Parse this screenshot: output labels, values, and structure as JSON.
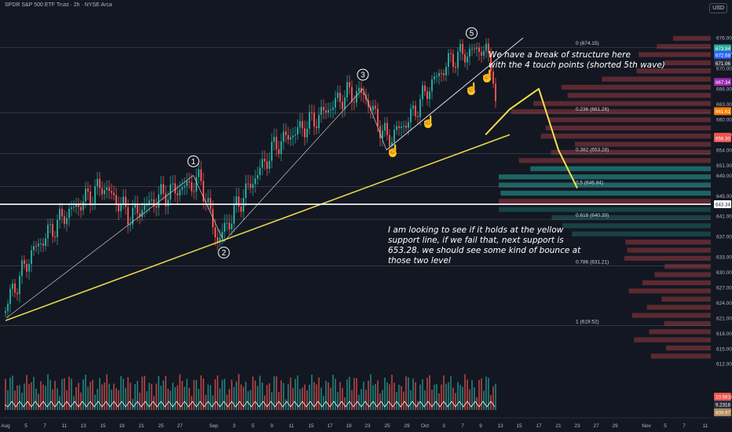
{
  "header": {
    "title": "SPDR S&P 500 ETF Trust · 2h · NYSE Arca",
    "currency": "USD"
  },
  "annotations": {
    "top": "We have a break of structure here\nwith the 4 touch points (shorted 5th wave)",
    "bottom": "I am looking to see if it holds at the yellow\nsupport line, if we fail that, next support is\n653.28.   we should see some kind of bounce at\nthose two level"
  },
  "colors": {
    "background": "#131722",
    "up": "#26a69a",
    "down": "#ef5350",
    "annotation": "#f5e04a",
    "white_line": "#ffffff"
  },
  "chart_data": {
    "type": "candlestick",
    "symbol": "SPY",
    "interval": "2h",
    "ylim": [
      612.5,
      676.5
    ],
    "y_ticks": [
      676.0,
      673.0,
      670.0,
      666.0,
      663.0,
      660.0,
      657.0,
      654.0,
      651.0,
      649.0,
      645.0,
      641.0,
      637.0,
      633.0,
      630.0,
      627.0,
      624.0,
      621.0,
      618.0,
      615.0,
      612.0
    ],
    "x_ticks": [
      "Aug",
      "5",
      "7",
      "11",
      "13",
      "15",
      "19",
      "21",
      "25",
      "27",
      "Sep",
      "3",
      "5",
      "9",
      "11",
      "15",
      "17",
      "19",
      "23",
      "25",
      "29",
      "Oct",
      "3",
      "7",
      "9",
      "13",
      "15",
      "17",
      "21",
      "23",
      "27",
      "29",
      "Nov",
      "5",
      "7",
      "11"
    ],
    "price_labels": [
      {
        "value": "673.95",
        "color": "#2a2e39"
      },
      {
        "value": "673.94",
        "color": "#26a69a"
      },
      {
        "value": "672.68",
        "color": "#2962ff"
      },
      {
        "value": "671.06",
        "color": "#2a2e39"
      },
      {
        "value": "667.34",
        "color": "#9c27b0"
      },
      {
        "value": "661.61",
        "color": "#f57c00"
      },
      {
        "value": "656.59",
        "color": "#ef5350"
      },
      {
        "value": "656.30",
        "color": "#ef5350"
      },
      {
        "value": "643.34",
        "color": "#ffffff"
      }
    ],
    "fib_levels": [
      {
        "label": "0 (674.15)",
        "value": 674.15
      },
      {
        "label": "0.236 (661.26)",
        "value": 661.26
      },
      {
        "label": "0.382 (653.28)",
        "value": 653.28
      },
      {
        "label": "0.5 (646.84)",
        "value": 646.84
      },
      {
        "label": "0.618 (640.39)",
        "value": 640.39
      },
      {
        "label": "0.786 (631.21)",
        "value": 631.21
      },
      {
        "label": "1 (619.52)",
        "value": 619.52
      }
    ],
    "wave_labels": [
      "1",
      "2",
      "3",
      "5"
    ],
    "wave_points": [
      {
        "label": "1",
        "x": "Aug 29",
        "y": 649.0
      },
      {
        "label": "2",
        "x": "Sep 2",
        "y": 636.0
      },
      {
        "label": "3",
        "x": "Sep 22",
        "y": 666.0
      },
      {
        "label": "5",
        "x": "Oct 8",
        "y": 674.15
      }
    ],
    "support_line": {
      "from": {
        "x": "Aug 1",
        "y": 620.5
      },
      "to": {
        "x": "Oct 14",
        "y": 657.0
      }
    },
    "white_line": 643.34,
    "projection": [
      {
        "x": "Oct 10",
        "y": 657
      },
      {
        "x": "Oct 14",
        "y": 662
      },
      {
        "x": "Oct 17",
        "y": 666
      },
      {
        "x": "Oct 21",
        "y": 654
      },
      {
        "x": "Oct 23",
        "y": 646.5
      }
    ],
    "bottom_values": [
      "10.5914",
      "9.2318",
      "609.97"
    ]
  }
}
